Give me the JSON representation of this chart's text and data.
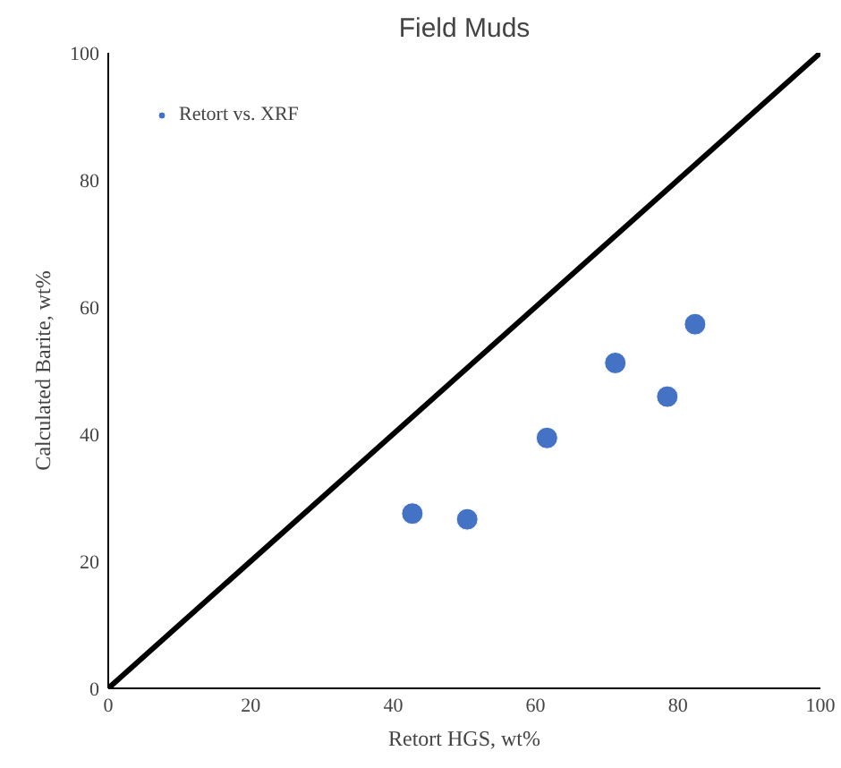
{
  "chart_data": {
    "type": "scatter",
    "title": "Field Muds",
    "xlabel": "Retort HGS, wt%",
    "ylabel": "Calculated Barite, wt%",
    "xlim": [
      0,
      100
    ],
    "ylim": [
      0,
      100
    ],
    "xticks": [
      0,
      20,
      40,
      60,
      80,
      100
    ],
    "yticks": [
      0,
      20,
      40,
      60,
      80,
      100
    ],
    "grid": false,
    "legend": "top left",
    "series": [
      {
        "name": "Retort vs. XRF",
        "color": "#4472c4",
        "marker": "circle",
        "x": [
          42.7,
          50.4,
          61.6,
          71.2,
          78.5,
          82.4
        ],
        "values": [
          27.5,
          26.6,
          39.4,
          51.2,
          45.9,
          57.3
        ]
      },
      {
        "type": "line",
        "color": "#000000",
        "x": [
          0,
          100
        ],
        "values": [
          0,
          100
        ],
        "line_style": "solid"
      }
    ]
  }
}
